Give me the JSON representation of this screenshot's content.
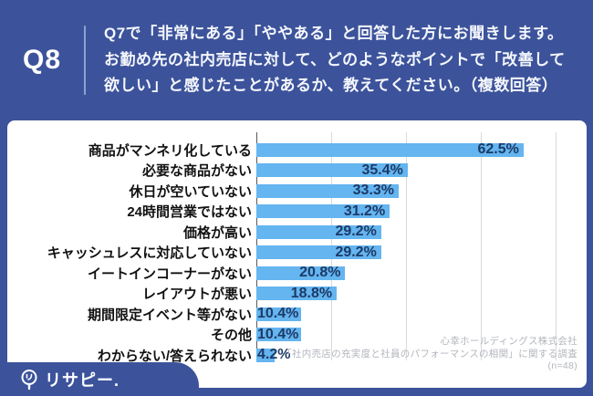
{
  "header": {
    "q_label": "Q8",
    "question_lines": [
      "Q7で「非常にある」「ややある」と回答した方にお聞きします。",
      "お勤め先の社内売店に対して、どのようなポイントで「改善して",
      "欲しい」と感じたことがあるか、教えてください。（複数回答）"
    ]
  },
  "chart_data": {
    "type": "bar",
    "orientation": "horizontal",
    "title": "",
    "xlabel": "",
    "ylabel": "",
    "xlim": [
      0,
      70
    ],
    "grid": true,
    "legend": false,
    "categories": [
      "商品がマンネリ化している",
      "必要な商品がない",
      "休日が空いていない",
      "24時間営業ではない",
      "価格が高い",
      "キャッシュレスに対応していない",
      "イートインコーナーがない",
      "レイアウトが悪い",
      "期間限定イベント等がない",
      "その他",
      "わからない/答えられない"
    ],
    "values": [
      62.5,
      35.4,
      33.3,
      31.2,
      29.2,
      29.2,
      20.8,
      18.8,
      10.4,
      10.4,
      4.2
    ],
    "value_suffix": "%",
    "bar_color": "#64b5f0",
    "value_label_color": "#1d3a66"
  },
  "source": {
    "lines": [
      "心幸ホールディングス株式会社",
      "「社内売店の充実度と社員のパフォーマンスの相関」に関する調査",
      "(n=48)"
    ]
  },
  "logo": {
    "text": "リサピー."
  },
  "colors": {
    "background": "#3c539b",
    "card": "#ffffff",
    "bar": "#64b5f0",
    "value_text": "#1d3a66",
    "gridline": "#d9d9d9",
    "axis_line": "#595959",
    "source_text": "#b3b6bd",
    "divider": "#8ea1d2"
  }
}
